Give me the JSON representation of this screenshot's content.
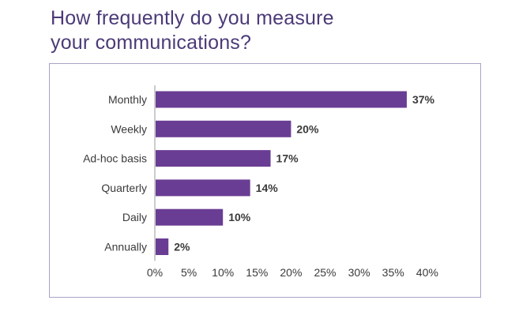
{
  "colors": {
    "title": "#4b3a78",
    "bar": "#6a3d94",
    "frame": "#aaa3c6",
    "axis": "#9a9a9a"
  },
  "chart_data": {
    "type": "bar",
    "orientation": "horizontal",
    "title": [
      "How frequently do you measure",
      "your communications?"
    ],
    "categories": [
      "Monthly",
      "Weekly",
      "Ad-hoc basis",
      "Quarterly",
      "Daily",
      "Annually"
    ],
    "values": [
      37,
      20,
      17,
      14,
      10,
      2
    ],
    "value_labels": [
      "37%",
      "20%",
      "17%",
      "14%",
      "10%",
      "2%"
    ],
    "xlim": [
      0,
      40
    ],
    "xticks": [
      "0%",
      "5%",
      "10%",
      "15%",
      "20%",
      "25%",
      "30%",
      "35%",
      "40%"
    ],
    "grid": false,
    "legend": "none"
  }
}
